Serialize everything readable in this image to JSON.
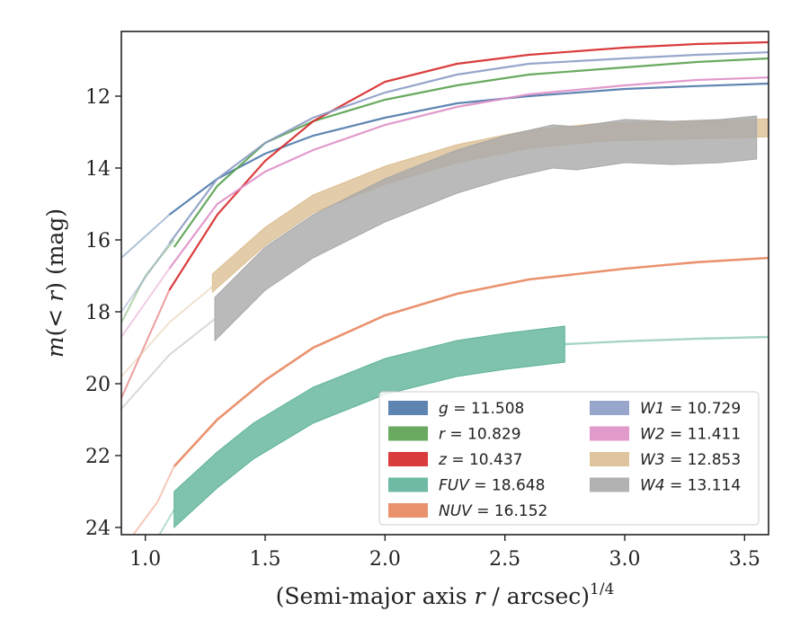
{
  "chart_data": {
    "type": "line",
    "xlabel": "(Semi-major axis r / arcsec)^{1/4}",
    "xlabel_parts": {
      "prefix": "(Semi-major axis ",
      "var": "r",
      "suffix": " / arcsec)",
      "sup": "1/4"
    },
    "ylabel": "m(< r) (mag)",
    "ylabel_parts": {
      "m": "m",
      "open": "(",
      "lt": "< ",
      "r": "r",
      "close": ")",
      "unit": " (mag)"
    },
    "xlim": [
      0.9,
      3.6
    ],
    "ylim": [
      24.2,
      10.2
    ],
    "y_inverted": true,
    "xticks": [
      1.0,
      1.5,
      2.0,
      2.5,
      3.0,
      3.5
    ],
    "xtick_labels": [
      "1.0",
      "1.5",
      "2.0",
      "2.5",
      "3.0",
      "3.5"
    ],
    "yticks": [
      12,
      14,
      16,
      18,
      20,
      22,
      24
    ],
    "ytick_labels": [
      "12",
      "14",
      "16",
      "18",
      "20",
      "22",
      "24"
    ],
    "grid": false,
    "legend_placement": "lower-right",
    "series": [
      {
        "name": "g",
        "legend_label": "= 11.508",
        "color": "#4c78a8",
        "faint": {
          "x": [
            0.9,
            1.1
          ],
          "y": [
            16.5,
            15.3
          ]
        },
        "main": {
          "x": [
            1.1,
            1.3,
            1.5,
            1.7,
            2.0,
            2.3,
            2.6,
            3.0,
            3.3,
            3.6
          ],
          "y": [
            15.3,
            14.3,
            13.6,
            13.1,
            12.6,
            12.2,
            12.0,
            11.8,
            11.72,
            11.65
          ]
        },
        "width": 2.2
      },
      {
        "name": "r",
        "legend_label": "= 10.829",
        "color": "#59a14f",
        "faint": {
          "x": [
            0.9,
            1.0,
            1.12
          ],
          "y": [
            18.3,
            17.0,
            16.0
          ]
        },
        "main": {
          "x": [
            1.12,
            1.3,
            1.5,
            1.7,
            2.0,
            2.3,
            2.6,
            3.0,
            3.3,
            3.6
          ],
          "y": [
            16.2,
            14.5,
            13.3,
            12.7,
            12.1,
            11.7,
            11.4,
            11.2,
            11.05,
            10.95
          ]
        },
        "width": 2.2
      },
      {
        "name": "z",
        "legend_label": "= 10.437",
        "color": "#d62728",
        "faint": {
          "x": [
            0.9,
            1.1
          ],
          "y": [
            20.4,
            17.4
          ]
        },
        "main": {
          "x": [
            1.1,
            1.3,
            1.5,
            1.7,
            2.0,
            2.3,
            2.6,
            3.0,
            3.3,
            3.6
          ],
          "y": [
            17.4,
            15.3,
            13.8,
            12.7,
            11.6,
            11.1,
            10.85,
            10.65,
            10.55,
            10.5
          ]
        },
        "width": 2.2
      },
      {
        "name": "FUV",
        "legend_label": "= 18.648",
        "color": "#5fb39a",
        "faint": {
          "x": [
            1.05,
            1.12
          ],
          "y": [
            24.3,
            23.5
          ]
        },
        "main": {
          "x": [
            1.12,
            1.3,
            1.45,
            1.7,
            2.0,
            2.3,
            2.5,
            2.75
          ],
          "y": [
            23.5,
            22.4,
            21.6,
            20.6,
            19.8,
            19.3,
            19.1,
            18.9
          ]
        },
        "after": {
          "x": [
            2.75,
            3.0,
            3.3,
            3.6
          ],
          "y": [
            18.9,
            18.82,
            18.75,
            18.7
          ]
        },
        "band": 0.5
      },
      {
        "name": "NUV",
        "legend_label": "= 16.152",
        "color": "#e8865e",
        "faint": {
          "x": [
            0.95,
            1.05,
            1.12
          ],
          "y": [
            24.2,
            23.3,
            22.3
          ]
        },
        "main": {
          "x": [
            1.12,
            1.3,
            1.5,
            1.7,
            2.0,
            2.3,
            2.6,
            3.0,
            3.3,
            3.6
          ],
          "y": [
            22.3,
            21.0,
            19.9,
            19.0,
            18.1,
            17.5,
            17.1,
            16.8,
            16.62,
            16.5
          ]
        },
        "width": 2.6
      },
      {
        "name": "W1",
        "legend_label": "= 10.729",
        "color": "#8c9cc4",
        "faint": {
          "x": [
            0.9,
            1.1
          ],
          "y": [
            18.0,
            16.1
          ]
        },
        "main": {
          "x": [
            1.1,
            1.3,
            1.5,
            1.7,
            2.0,
            2.3,
            2.6,
            3.0,
            3.3,
            3.6
          ],
          "y": [
            16.1,
            14.3,
            13.3,
            12.6,
            11.9,
            11.4,
            11.1,
            10.95,
            10.85,
            10.78
          ]
        },
        "width": 2.2
      },
      {
        "name": "W2",
        "legend_label": "= 11.411",
        "color": "#de8fc6",
        "faint": {
          "x": [
            0.9,
            1.1
          ],
          "y": [
            18.7,
            16.8
          ]
        },
        "main": {
          "x": [
            1.1,
            1.3,
            1.5,
            1.7,
            2.0,
            2.3,
            2.6,
            3.0,
            3.3,
            3.6
          ],
          "y": [
            16.8,
            15.0,
            14.1,
            13.5,
            12.8,
            12.3,
            11.95,
            11.7,
            11.55,
            11.48
          ]
        },
        "width": 2.2
      },
      {
        "name": "W3",
        "legend_label": "= 12.853",
        "color": "#dcbf93",
        "faint": {
          "x": [
            0.9,
            1.1,
            1.28
          ],
          "y": [
            19.8,
            18.3,
            17.3
          ]
        },
        "main": {
          "x": [
            1.28,
            1.5,
            1.7,
            2.0,
            2.3,
            2.6,
            2.9,
            3.2,
            3.5,
            3.6
          ],
          "y": [
            17.2,
            15.9,
            15.0,
            14.2,
            13.6,
            13.2,
            13.0,
            12.95,
            12.9,
            12.88
          ]
        },
        "band": 0.25
      },
      {
        "name": "W4",
        "legend_label": "= 13.114",
        "color": "#a9a9a9",
        "faint": {
          "x": [
            0.9,
            1.1,
            1.29
          ],
          "y": [
            20.7,
            19.2,
            18.2
          ]
        },
        "main": {
          "x": [
            1.29,
            1.5,
            1.7,
            2.0,
            2.3,
            2.5,
            2.7,
            2.8,
            2.9,
            3.0,
            3.2,
            3.4,
            3.55
          ],
          "y": [
            18.2,
            16.8,
            15.9,
            14.9,
            14.1,
            13.7,
            13.4,
            13.45,
            13.35,
            13.25,
            13.3,
            13.25,
            13.15
          ]
        },
        "band": 0.6
      }
    ]
  }
}
